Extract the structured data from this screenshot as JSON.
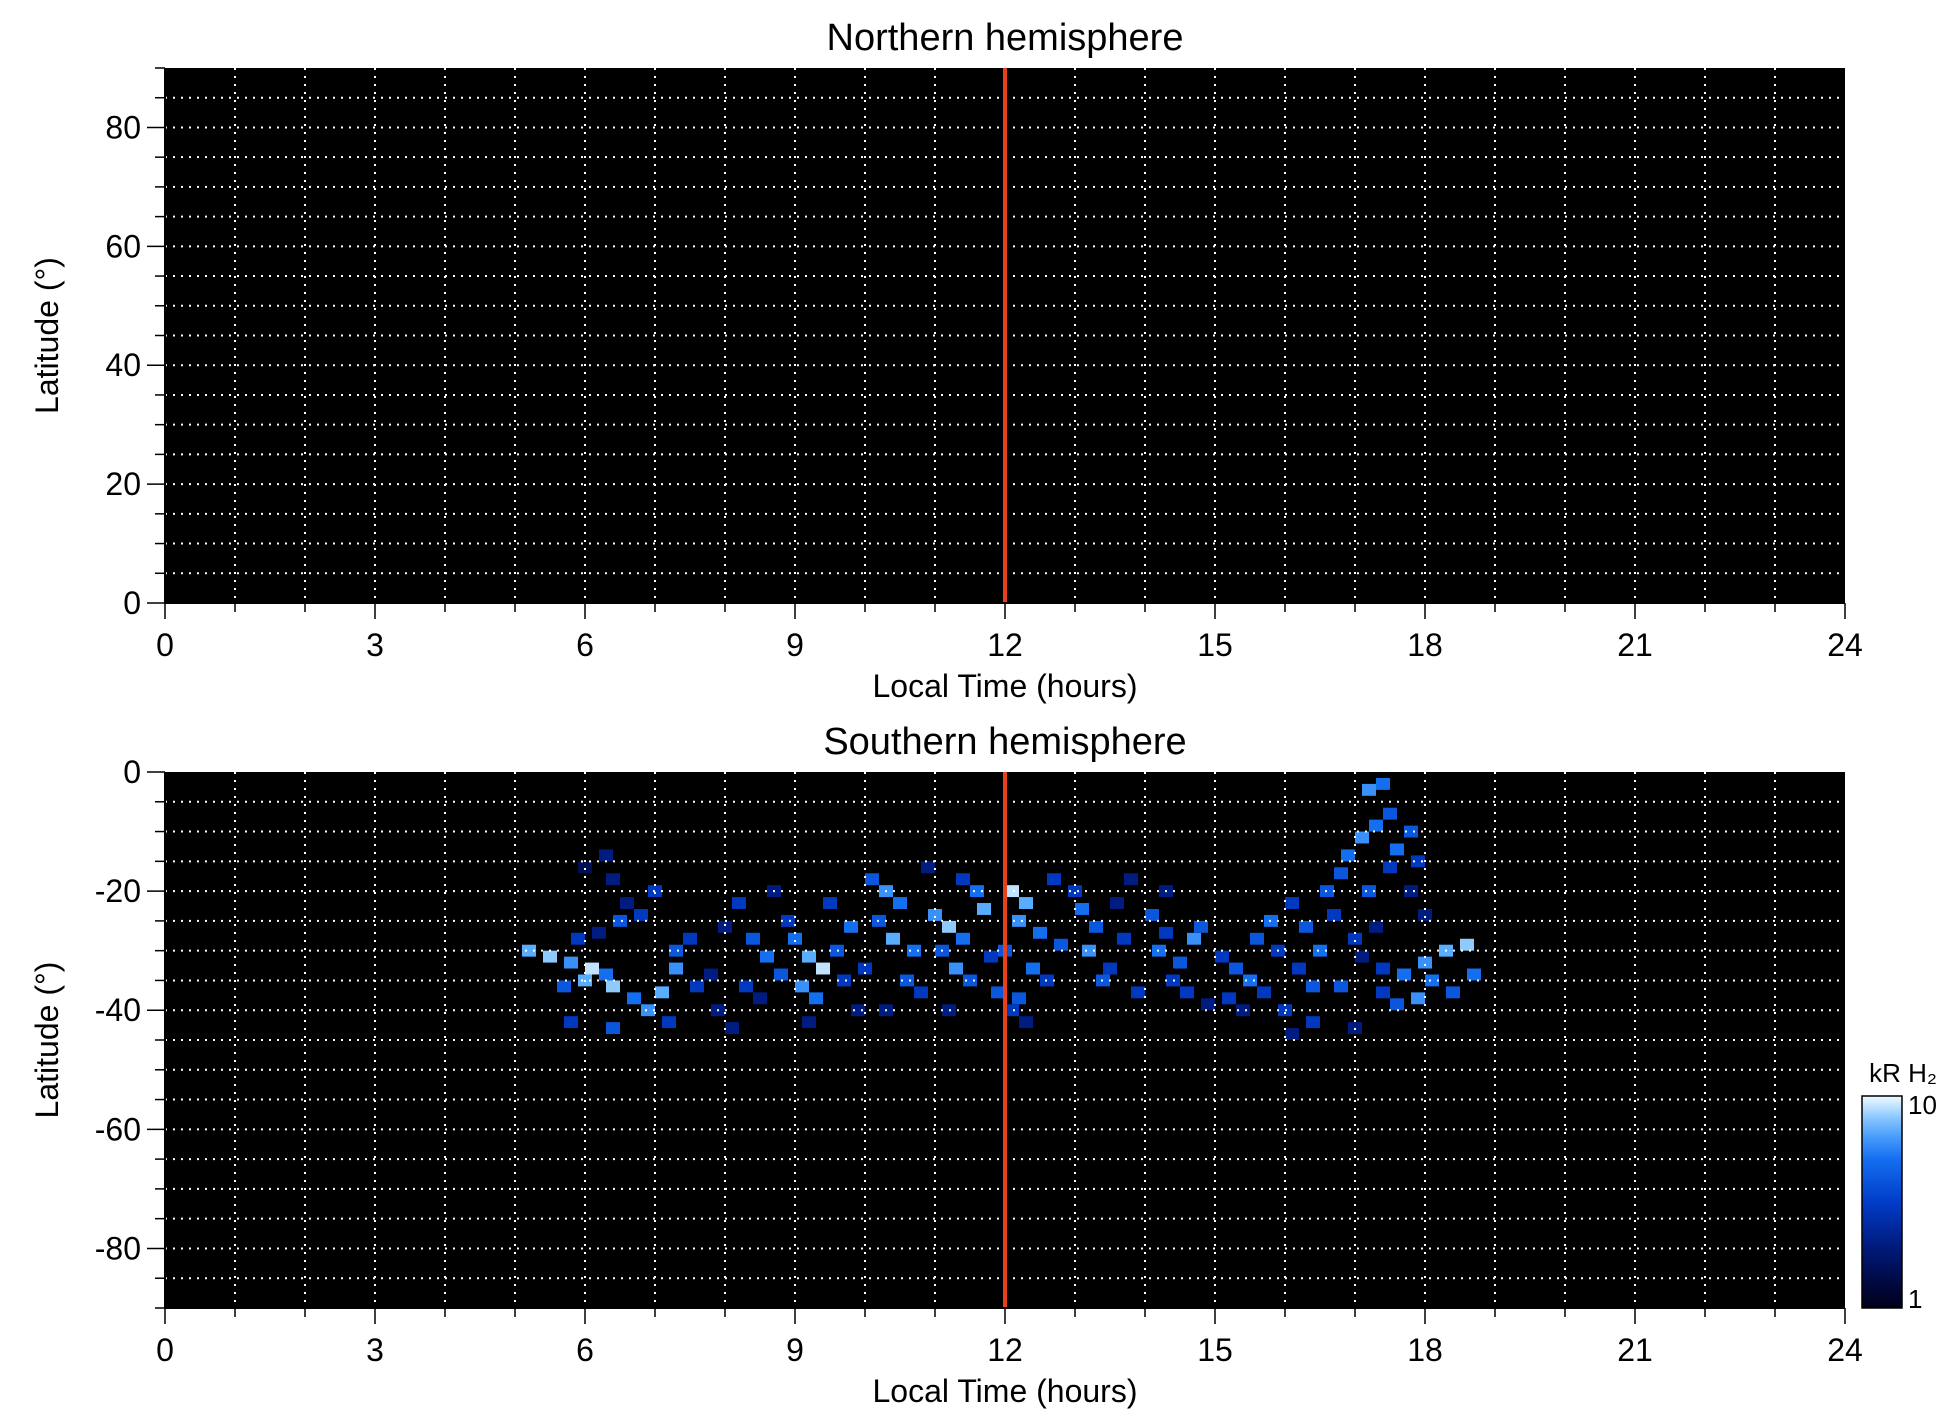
{
  "chart_data": [
    {
      "type": "heatmap",
      "title": "Northern hemisphere",
      "xlabel": "Local Time (hours)",
      "ylabel": "Latitude (°)",
      "xlim": [
        0,
        24
      ],
      "ylim": [
        0,
        90
      ],
      "xticks": [
        0,
        3,
        6,
        9,
        12,
        15,
        18,
        21,
        24
      ],
      "yticks": [
        0,
        20,
        40,
        60,
        80
      ],
      "grid": true,
      "background_color": "#000000",
      "vline": {
        "x": 12,
        "color": "#e8401c"
      },
      "cells": []
    },
    {
      "type": "heatmap",
      "title": "Southern hemisphere",
      "xlabel": "Local Time (hours)",
      "ylabel": "Latitude (°)",
      "xlim": [
        0,
        24
      ],
      "ylim": [
        -90,
        0
      ],
      "xticks": [
        0,
        3,
        6,
        9,
        12,
        15,
        18,
        21,
        24
      ],
      "yticks": [
        0,
        -20,
        -40,
        -60,
        -80
      ],
      "grid": true,
      "background_color": "#000000",
      "vline": {
        "x": 12,
        "color": "#e8401c"
      },
      "cells": [
        [
          5.2,
          -30,
          7
        ],
        [
          5.5,
          -31,
          8
        ],
        [
          5.8,
          -32,
          6
        ],
        [
          6.1,
          -33,
          9
        ],
        [
          6.3,
          -34,
          5
        ],
        [
          5.7,
          -36,
          4
        ],
        [
          6.0,
          -35,
          7
        ],
        [
          6.4,
          -36,
          8
        ],
        [
          5.9,
          -28,
          3
        ],
        [
          6.2,
          -27,
          2
        ],
        [
          6.5,
          -25,
          4
        ],
        [
          6.8,
          -24,
          3
        ],
        [
          6.7,
          -38,
          5
        ],
        [
          6.9,
          -40,
          6
        ],
        [
          7.1,
          -37,
          7
        ],
        [
          6.6,
          -22,
          2
        ],
        [
          7.0,
          -20,
          3
        ],
        [
          6.4,
          -18,
          2
        ],
        [
          6.0,
          -16,
          1.5
        ],
        [
          6.3,
          -14,
          2
        ],
        [
          5.8,
          -42,
          3
        ],
        [
          6.4,
          -43,
          4
        ],
        [
          7.3,
          -30,
          4
        ],
        [
          7.5,
          -28,
          3
        ],
        [
          7.3,
          -33,
          6
        ],
        [
          7.6,
          -36,
          3
        ],
        [
          7.8,
          -34,
          2
        ],
        [
          7.2,
          -42,
          3
        ],
        [
          7.9,
          -40,
          2
        ],
        [
          8.2,
          -22,
          3
        ],
        [
          8.0,
          -26,
          2
        ],
        [
          8.4,
          -28,
          4
        ],
        [
          8.6,
          -31,
          5
        ],
        [
          8.3,
          -36,
          3
        ],
        [
          8.8,
          -34,
          4
        ],
        [
          8.5,
          -38,
          2
        ],
        [
          8.9,
          -25,
          3
        ],
        [
          8.7,
          -20,
          2
        ],
        [
          8.1,
          -43,
          2
        ],
        [
          9.0,
          -28,
          5
        ],
        [
          9.2,
          -31,
          7
        ],
        [
          9.4,
          -33,
          9
        ],
        [
          9.1,
          -36,
          6
        ],
        [
          9.3,
          -38,
          5
        ],
        [
          9.6,
          -30,
          4
        ],
        [
          9.5,
          -22,
          3
        ],
        [
          9.8,
          -26,
          5
        ],
        [
          9.7,
          -35,
          3
        ],
        [
          9.9,
          -40,
          2
        ],
        [
          9.2,
          -42,
          2
        ],
        [
          10.1,
          -18,
          4
        ],
        [
          10.3,
          -20,
          6
        ],
        [
          10.5,
          -22,
          5
        ],
        [
          10.2,
          -25,
          4
        ],
        [
          10.4,
          -28,
          7
        ],
        [
          10.7,
          -30,
          5
        ],
        [
          10.0,
          -33,
          3
        ],
        [
          10.6,
          -35,
          4
        ],
        [
          10.8,
          -37,
          3
        ],
        [
          10.3,
          -40,
          2
        ],
        [
          10.9,
          -16,
          2
        ],
        [
          11.0,
          -24,
          6
        ],
        [
          11.2,
          -26,
          8
        ],
        [
          11.4,
          -28,
          5
        ],
        [
          11.1,
          -30,
          4
        ],
        [
          11.3,
          -33,
          6
        ],
        [
          11.5,
          -35,
          4
        ],
        [
          11.6,
          -20,
          5
        ],
        [
          11.7,
          -23,
          7
        ],
        [
          11.8,
          -31,
          3
        ],
        [
          11.4,
          -18,
          3
        ],
        [
          11.9,
          -37,
          4
        ],
        [
          11.2,
          -40,
          2
        ],
        [
          12.1,
          -20,
          9
        ],
        [
          12.3,
          -22,
          7
        ],
        [
          12.2,
          -25,
          6
        ],
        [
          12.5,
          -27,
          5
        ],
        [
          12.0,
          -30,
          4
        ],
        [
          12.4,
          -33,
          5
        ],
        [
          12.6,
          -35,
          3
        ],
        [
          12.2,
          -38,
          4
        ],
        [
          12.7,
          -18,
          3
        ],
        [
          12.1,
          -40,
          3
        ],
        [
          12.3,
          -42,
          2
        ],
        [
          12.8,
          -29,
          4
        ],
        [
          13.0,
          -20,
          3
        ],
        [
          13.1,
          -23,
          5
        ],
        [
          13.3,
          -26,
          4
        ],
        [
          13.2,
          -30,
          6
        ],
        [
          13.5,
          -33,
          3
        ],
        [
          13.4,
          -35,
          4
        ],
        [
          13.6,
          -22,
          2
        ],
        [
          13.7,
          -28,
          3
        ],
        [
          13.8,
          -18,
          2
        ],
        [
          13.9,
          -37,
          3
        ],
        [
          14.1,
          -24,
          4
        ],
        [
          14.3,
          -27,
          3
        ],
        [
          14.2,
          -30,
          5
        ],
        [
          14.5,
          -32,
          4
        ],
        [
          14.4,
          -35,
          3
        ],
        [
          14.7,
          -28,
          6
        ],
        [
          14.8,
          -26,
          4
        ],
        [
          14.6,
          -37,
          3
        ],
        [
          14.9,
          -39,
          2
        ],
        [
          14.3,
          -20,
          2
        ],
        [
          15.1,
          -31,
          3
        ],
        [
          15.3,
          -33,
          4
        ],
        [
          15.5,
          -35,
          5
        ],
        [
          15.2,
          -38,
          3
        ],
        [
          15.6,
          -28,
          4
        ],
        [
          15.8,
          -25,
          5
        ],
        [
          15.4,
          -40,
          2
        ],
        [
          15.9,
          -30,
          3
        ],
        [
          15.7,
          -37,
          3
        ],
        [
          16.1,
          -22,
          3
        ],
        [
          16.3,
          -26,
          4
        ],
        [
          16.5,
          -30,
          5
        ],
        [
          16.2,
          -33,
          3
        ],
        [
          16.4,
          -36,
          4
        ],
        [
          16.6,
          -20,
          4
        ],
        [
          16.0,
          -40,
          3
        ],
        [
          16.1,
          -44,
          2
        ],
        [
          16.4,
          -42,
          3
        ],
        [
          16.7,
          -24,
          3
        ],
        [
          16.8,
          -17,
          4
        ],
        [
          16.9,
          -14,
          5
        ],
        [
          17.1,
          -11,
          6
        ],
        [
          17.3,
          -9,
          5
        ],
        [
          17.5,
          -7,
          4
        ],
        [
          17.2,
          -3,
          6
        ],
        [
          17.4,
          -2,
          5
        ],
        [
          17.6,
          -13,
          5
        ],
        [
          17.8,
          -10,
          4
        ],
        [
          17.5,
          -16,
          3
        ],
        [
          17.9,
          -15,
          3
        ],
        [
          17.2,
          -20,
          4
        ],
        [
          17.0,
          -28,
          3
        ],
        [
          16.8,
          -36,
          4
        ],
        [
          17.4,
          -37,
          3
        ],
        [
          17.0,
          -43,
          2
        ],
        [
          17.7,
          -34,
          5
        ],
        [
          18.0,
          -32,
          6
        ],
        [
          18.3,
          -30,
          7
        ],
        [
          18.6,
          -29,
          8
        ],
        [
          18.1,
          -35,
          5
        ],
        [
          18.4,
          -37,
          4
        ],
        [
          18.7,
          -34,
          5
        ],
        [
          17.9,
          -38,
          6
        ],
        [
          17.6,
          -39,
          4
        ],
        [
          17.8,
          -20,
          2
        ],
        [
          18.0,
          -24,
          2
        ],
        [
          17.3,
          -26,
          2
        ],
        [
          17.1,
          -31,
          2
        ],
        [
          17.4,
          -33,
          3
        ]
      ]
    }
  ],
  "colorbar": {
    "label": "kR H₂",
    "min_label": "1",
    "max_label": "10",
    "scale": "log"
  }
}
